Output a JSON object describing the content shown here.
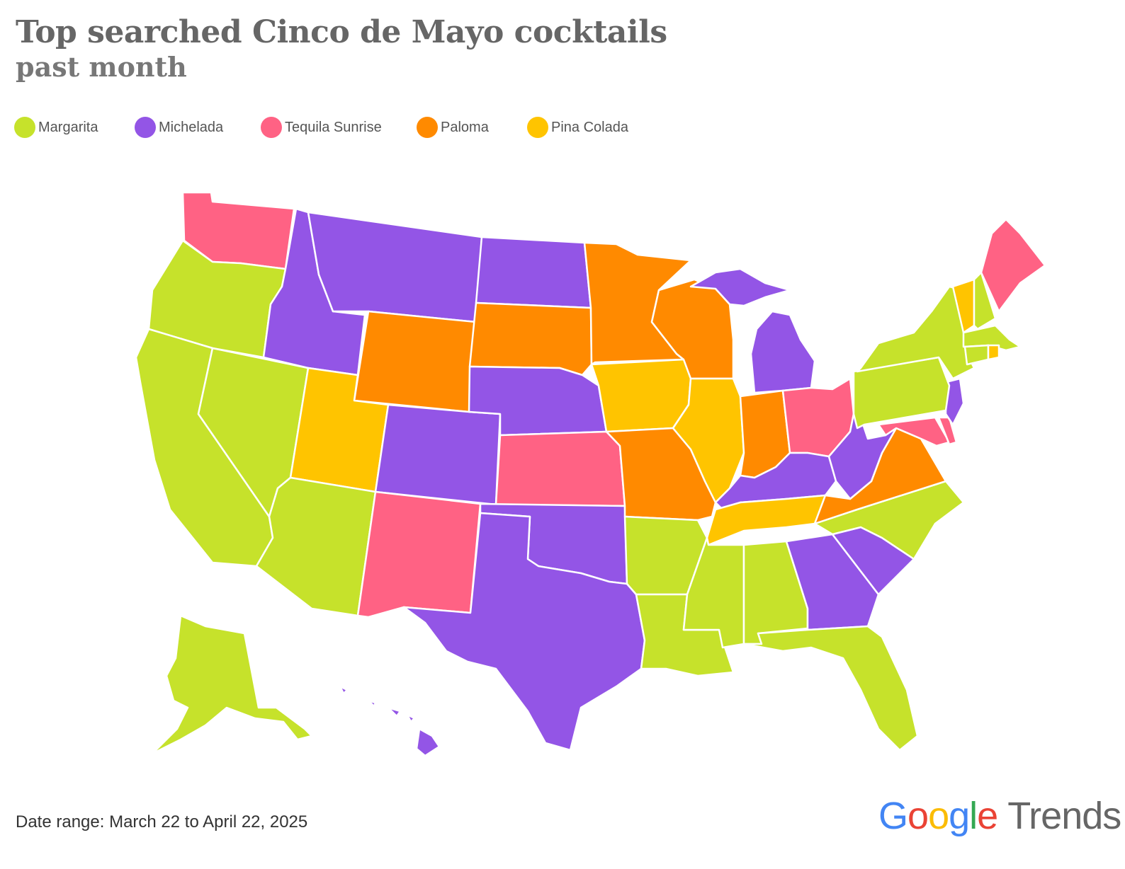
{
  "title": "Top searched Cinco de Mayo cocktails",
  "subtitle": "past month",
  "legend": [
    {
      "label": "Margarita",
      "color": "#c6e22b"
    },
    {
      "label": "Michelada",
      "color": "#9355e6"
    },
    {
      "label": "Tequila Sunrise",
      "color": "#ff6284"
    },
    {
      "label": "Paloma",
      "color": "#ff8a00"
    },
    {
      "label": "Pina Colada",
      "color": "#ffc400"
    }
  ],
  "map": {
    "regions": [
      {
        "code": "WA",
        "category": "Tequila Sunrise"
      },
      {
        "code": "OR",
        "category": "Margarita"
      },
      {
        "code": "CA",
        "category": "Margarita"
      },
      {
        "code": "NV",
        "category": "Margarita"
      },
      {
        "code": "ID",
        "category": "Michelada"
      },
      {
        "code": "MT",
        "category": "Michelada"
      },
      {
        "code": "WY",
        "category": "Paloma"
      },
      {
        "code": "UT",
        "category": "Pina Colada"
      },
      {
        "code": "AZ",
        "category": "Margarita"
      },
      {
        "code": "CO",
        "category": "Michelada"
      },
      {
        "code": "NM",
        "category": "Tequila Sunrise"
      },
      {
        "code": "ND",
        "category": "Michelada"
      },
      {
        "code": "SD",
        "category": "Paloma"
      },
      {
        "code": "NE",
        "category": "Michelada"
      },
      {
        "code": "KS",
        "category": "Tequila Sunrise"
      },
      {
        "code": "OK",
        "category": "Michelada"
      },
      {
        "code": "TX",
        "category": "Michelada"
      },
      {
        "code": "MN",
        "category": "Paloma"
      },
      {
        "code": "IA",
        "category": "Pina Colada"
      },
      {
        "code": "MO",
        "category": "Paloma"
      },
      {
        "code": "AR",
        "category": "Margarita"
      },
      {
        "code": "LA",
        "category": "Margarita"
      },
      {
        "code": "WI",
        "category": "Paloma"
      },
      {
        "code": "IL",
        "category": "Pina Colada"
      },
      {
        "code": "MI",
        "category": "Michelada"
      },
      {
        "code": "IN",
        "category": "Paloma"
      },
      {
        "code": "OH",
        "category": "Tequila Sunrise"
      },
      {
        "code": "KY",
        "category": "Michelada"
      },
      {
        "code": "TN",
        "category": "Pina Colada"
      },
      {
        "code": "MS",
        "category": "Margarita"
      },
      {
        "code": "AL",
        "category": "Margarita"
      },
      {
        "code": "GA",
        "category": "Michelada"
      },
      {
        "code": "FL",
        "category": "Margarita"
      },
      {
        "code": "SC",
        "category": "Michelada"
      },
      {
        "code": "NC",
        "category": "Margarita"
      },
      {
        "code": "VA",
        "category": "Paloma"
      },
      {
        "code": "WV",
        "category": "Michelada"
      },
      {
        "code": "MD",
        "category": "Tequila Sunrise"
      },
      {
        "code": "DE",
        "category": "Tequila Sunrise"
      },
      {
        "code": "NJ",
        "category": "Michelada"
      },
      {
        "code": "PA",
        "category": "Margarita"
      },
      {
        "code": "NY",
        "category": "Margarita"
      },
      {
        "code": "VT",
        "category": "Pina Colada"
      },
      {
        "code": "NH",
        "category": "Margarita"
      },
      {
        "code": "ME",
        "category": "Tequila Sunrise"
      },
      {
        "code": "MA",
        "category": "Margarita"
      },
      {
        "code": "CT",
        "category": "Margarita"
      },
      {
        "code": "RI",
        "category": "Pina Colada"
      },
      {
        "code": "AK",
        "category": "Margarita"
      },
      {
        "code": "HI",
        "category": "Michelada"
      }
    ]
  },
  "footer": {
    "date_range": "Date range: March 22 to April 22, 2025"
  },
  "logo": {
    "part1": "G",
    "part2": "o",
    "part3": "o",
    "part4": "g",
    "part5": "l",
    "part6": "e",
    "trends": "Trends"
  }
}
